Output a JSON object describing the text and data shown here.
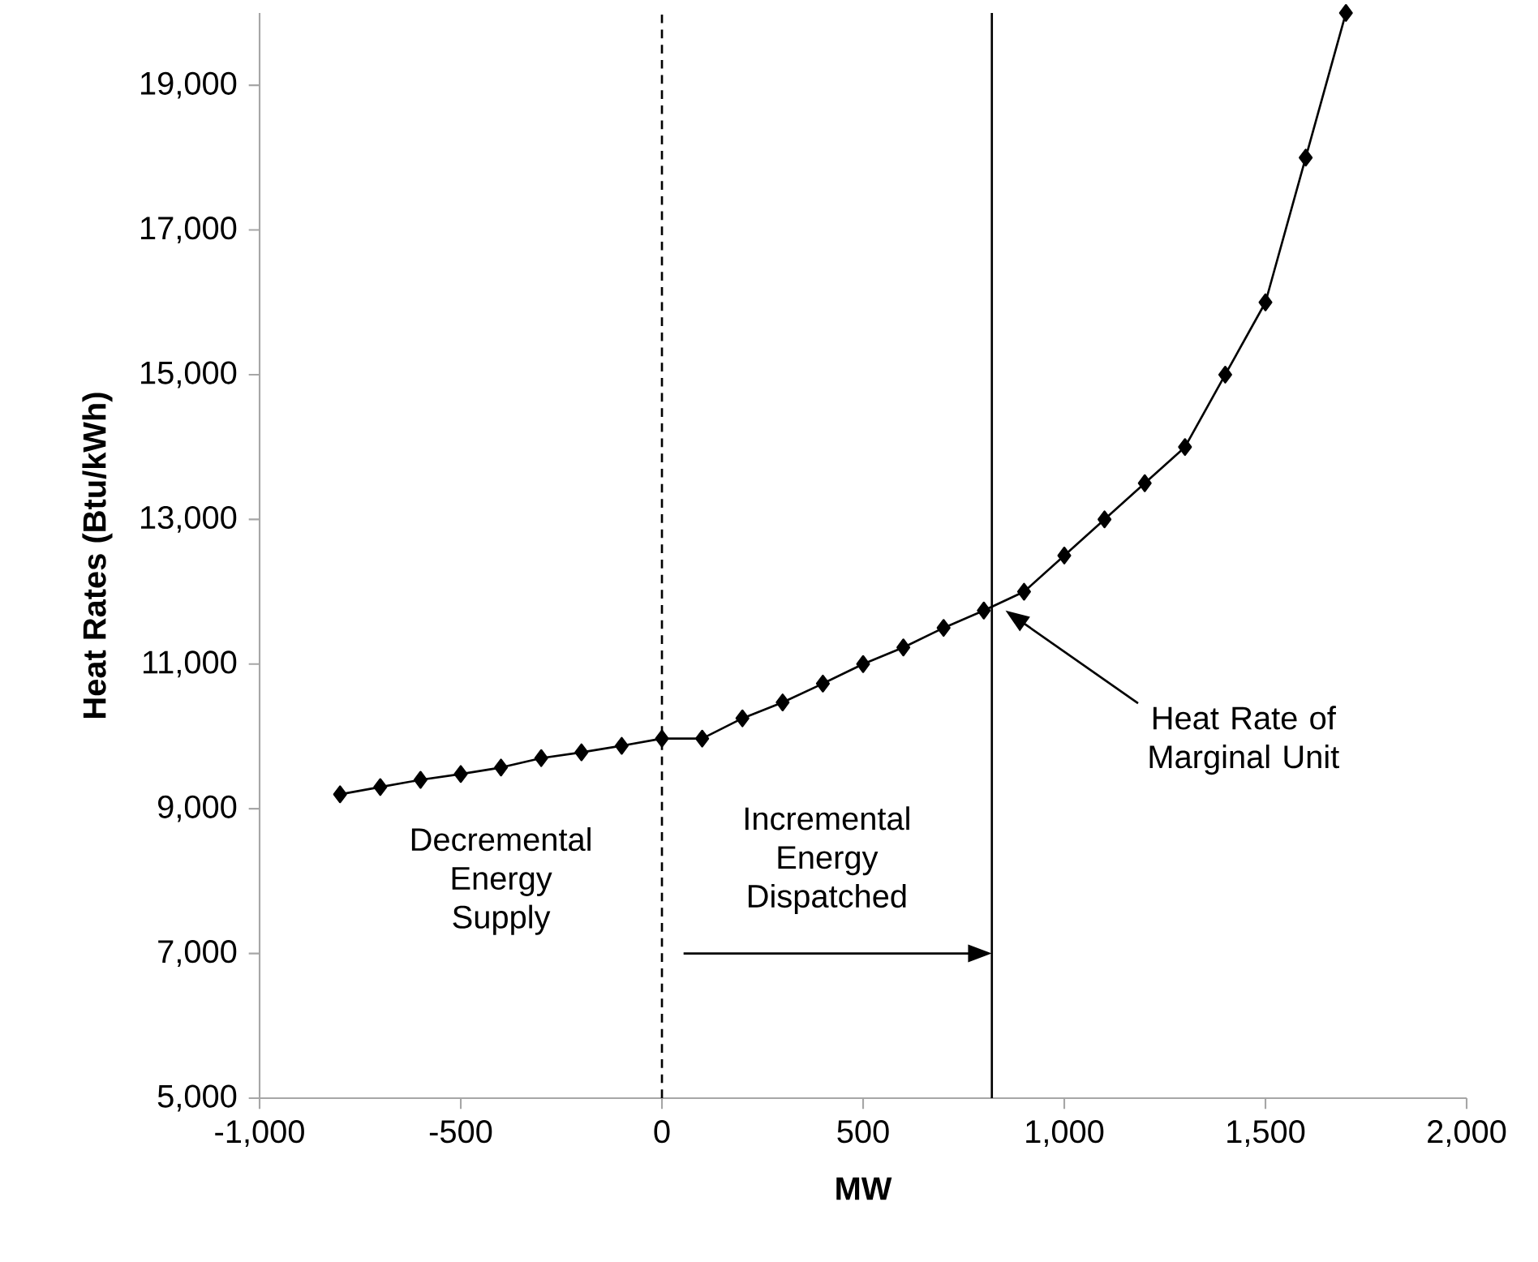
{
  "chart_data": {
    "type": "line",
    "xlabel": "MW",
    "ylabel": "Heat Rates (Btu/kWh)",
    "x": [
      -800,
      -700,
      -600,
      -500,
      -400,
      -300,
      -200,
      -100,
      0,
      100,
      200,
      300,
      400,
      500,
      600,
      700,
      800,
      900,
      1000,
      1100,
      1200,
      1300,
      1400,
      1500,
      1600,
      1700
    ],
    "values": [
      9200,
      9300,
      9400,
      9480,
      9570,
      9700,
      9780,
      9870,
      9970,
      9970,
      10250,
      10470,
      10730,
      11000,
      11230,
      11500,
      11740,
      12000,
      12500,
      13000,
      13500,
      14000,
      15000,
      16000,
      18000,
      20000
    ],
    "color": "#000000",
    "marker": "diamond",
    "line_style": "solid",
    "xlim": [
      -1000,
      2000
    ],
    "xticks": [
      {
        "value": -1000,
        "label": "-1,000"
      },
      -500,
      0,
      500,
      {
        "value": 1000,
        "label": "1,000"
      },
      {
        "value": 1500,
        "label": "1,500"
      },
      {
        "value": 2000,
        "label": "2,000"
      }
    ],
    "ylim": [
      5000,
      20000
    ],
    "yticks": [
      {
        "value": 5000,
        "label": "5,000"
      },
      {
        "value": 7000,
        "label": "7,000"
      },
      {
        "value": 9000,
        "label": "9,000"
      },
      {
        "value": 11000,
        "label": "11,000"
      },
      {
        "value": 13000,
        "label": "13,000"
      },
      {
        "value": 15000,
        "label": "15,000"
      },
      {
        "value": 17000,
        "label": "17,000"
      },
      {
        "value": 19000,
        "label": "19,000"
      }
    ],
    "ref_lines": [
      {
        "axis": "x",
        "value": 0,
        "line_style": "dashed"
      },
      {
        "axis": "x",
        "value": 820,
        "line_style": "solid"
      }
    ],
    "annotations": [
      "Decremental Energy Supply",
      {
        "text": "Incremental Energy Dispatched",
        "x": 820,
        "y": 7000
      },
      "Heat Rate of Marginal Unit"
    ]
  }
}
